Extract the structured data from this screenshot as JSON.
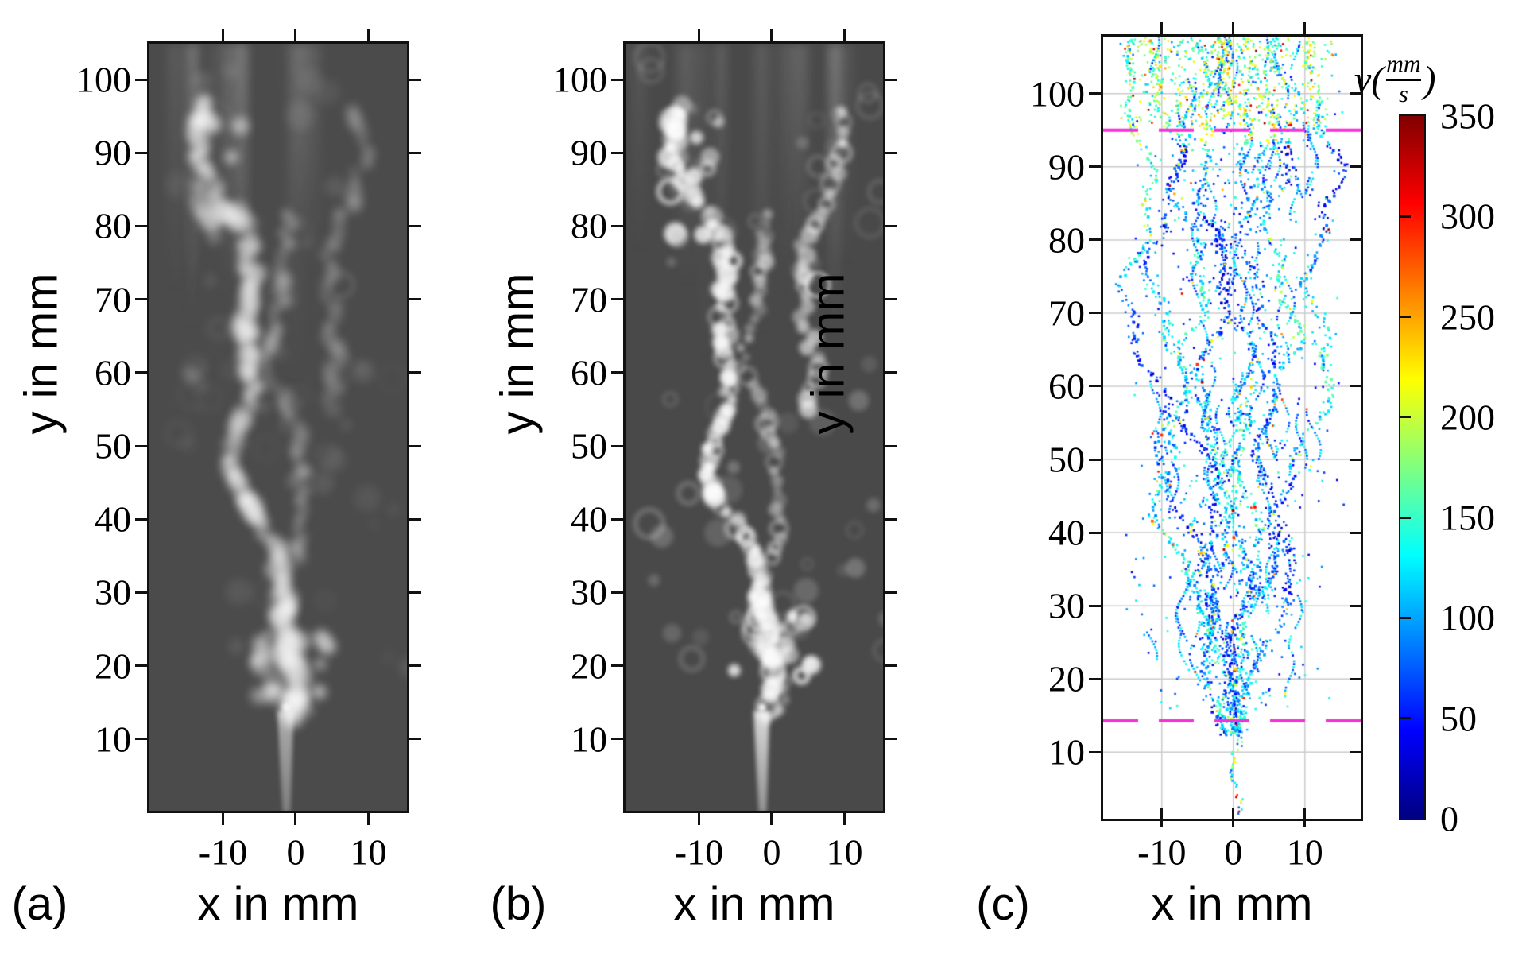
{
  "figure": {
    "panels": [
      {
        "letter": "(a)",
        "xlabel": "x in mm",
        "ylabel": "y in mm",
        "xticks": [
          -10,
          0,
          10
        ],
        "yticks": [
          100,
          90,
          80,
          70,
          60,
          50,
          40,
          30,
          20,
          10
        ],
        "xlim": [
          -20.1,
          15.3
        ],
        "ylim": [
          0.2,
          104.9
        ],
        "content": "grayscale shadowgraph: blurred meandering bubble chain rising from a nozzle jet at bottom centre",
        "render": {
          "style": "radiograph",
          "seed": 12,
          "bg": "#4b4b4b",
          "blur": 6,
          "brightness": 0.55
        }
      },
      {
        "letter": "(b)",
        "xlabel": "x in mm",
        "ylabel": "y in mm",
        "xticks": [
          -10,
          0,
          10
        ],
        "yticks": [
          100,
          90,
          80,
          70,
          60,
          50,
          40,
          30,
          20,
          10
        ],
        "xlim": [
          -20.1,
          15.3
        ],
        "ylim": [
          0.2,
          104.9
        ],
        "content": "sharpened high-contrast version: bright bubbles and ring-shaped bubble outlines over dark background",
        "render": {
          "style": "radiograph",
          "seed": 47,
          "bg": "#494949",
          "blur": 3,
          "brightness": 1.0
        }
      },
      {
        "letter": "(c)",
        "xlabel": "x in mm",
        "ylabel": "y in mm",
        "xticks": [
          -10,
          0,
          10
        ],
        "yticks": [
          100,
          90,
          80,
          70,
          60,
          50,
          40,
          30,
          20,
          10
        ],
        "xlim": [
          -18.2,
          17.8
        ],
        "ylim": [
          0.9,
          107.8
        ],
        "grid_color": "#cccccc",
        "dashed_lines_y": [
          95,
          14.3
        ],
        "dashed_color": "#f72fd7",
        "content": "detected bubble trajectories colored by velocity (jet colormap), magenta dashed reference lines",
        "render": {
          "style": "scatter",
          "seed": 99
        }
      }
    ],
    "colorbar": {
      "label": {
        "prefix": "v(",
        "numerator": "mm",
        "denominator": "s",
        "suffix": ")"
      },
      "ticks": [
        350,
        300,
        250,
        200,
        150,
        100,
        50,
        0
      ],
      "vmin": 0,
      "vmax": 350,
      "gradient_top_to_bottom": [
        "#800000",
        "#ff0000",
        "#ff8000",
        "#ffff00",
        "#80ff80",
        "#00ffff",
        "#0080ff",
        "#0000ff",
        "#000080"
      ]
    },
    "colors": {
      "axis": "#111111",
      "text": "#000000"
    }
  },
  "chart_data": {
    "type": "scatter",
    "panel": "(c)",
    "title": "",
    "xlabel": "x in mm",
    "ylabel": "y in mm",
    "xlim": [
      -18,
      18
    ],
    "ylim": [
      0,
      108
    ],
    "xticks": [
      -10,
      0,
      10
    ],
    "yticks": [
      10,
      20,
      30,
      40,
      50,
      60,
      70,
      80,
      90,
      100
    ],
    "grid": true,
    "colorbar": {
      "label": "v (mm/s)",
      "min": 0,
      "max": 350,
      "ticks": [
        0,
        50,
        100,
        150,
        200,
        250,
        300,
        350
      ],
      "colormap": "jet"
    },
    "annotations": [
      {
        "type": "horizontal-dashed-line",
        "y_mm": 95,
        "color": "magenta"
      },
      {
        "type": "horizontal-dashed-line",
        "y_mm": 14,
        "color": "magenta"
      }
    ],
    "series_summary": {
      "n_points_approx": 5000,
      "track_top_x_mm": [
        -13,
        -10,
        -6,
        -3,
        0,
        3,
        7,
        12
      ],
      "velocity_range_mm_per_s": [
        0,
        350
      ],
      "dominant_velocity_mm_per_s": [
        50,
        180
      ],
      "description": "Thousands of bubble-track points rise from the nozzle at x=0 below y=14 mm, fan out to about +/-13 mm, meander upward; velocities mostly 50-180 mm/s (blue-cyan-green), sporadic 200-350 mm/s outliers (yellow-orange-red), densest high-velocity band above y=95 mm."
    },
    "companion_panels": [
      {
        "panel": "(a)",
        "type": "image",
        "description": "raw grayscale bubble-column shadowgraph"
      },
      {
        "panel": "(b)",
        "type": "image",
        "description": "processed high-contrast bubble image"
      }
    ]
  }
}
